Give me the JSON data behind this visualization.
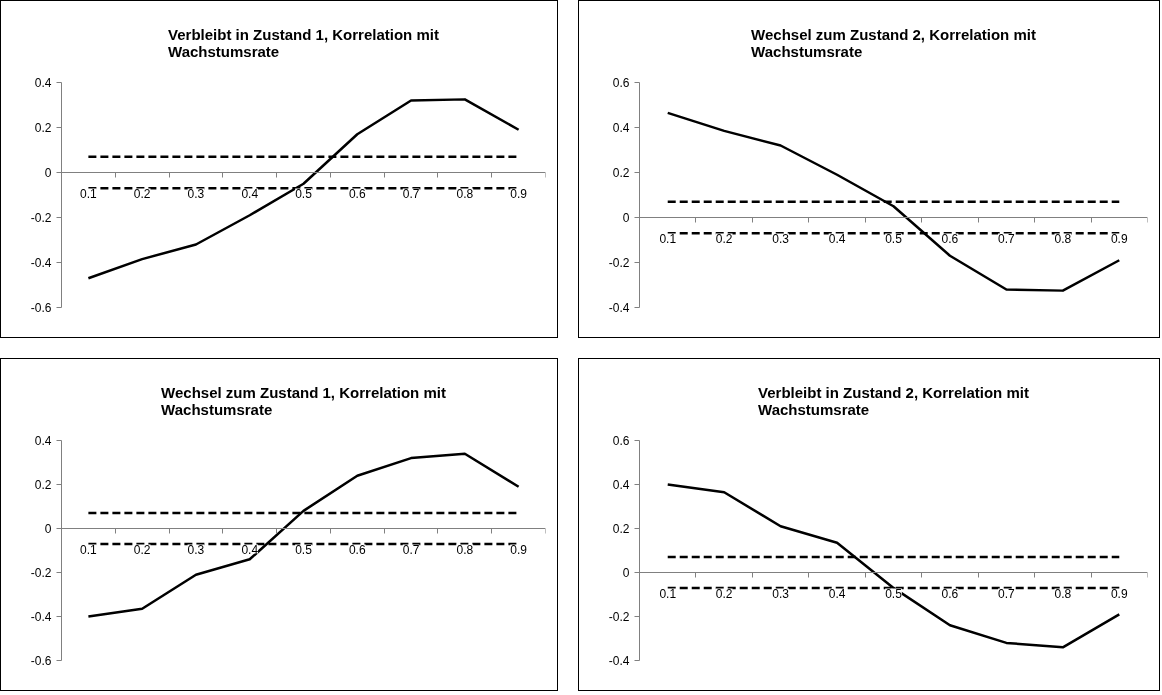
{
  "chart_data": [
    {
      "type": "line",
      "title": "Verbleibt in Zustand 1, Korrelation mit Wachstumsrate",
      "categories": [
        "0.1",
        "0.2",
        "0.3",
        "0.4",
        "0.5",
        "0.6",
        "0.7",
        "0.8",
        "0.9"
      ],
      "ylim": [
        -0.6,
        0.4
      ],
      "yticks": [
        -0.6,
        -0.4,
        -0.2,
        0,
        0.2,
        0.4
      ],
      "grid": false,
      "series": [
        {
          "color": "#000000",
          "line_style": "solid",
          "values": [
            -0.47,
            -0.385,
            -0.32,
            -0.19,
            -0.05,
            0.17,
            0.32,
            0.325,
            0.19
          ]
        },
        {
          "color": "#000000",
          "line_style": "dashed",
          "values": [
            0.07,
            0.07,
            0.07,
            0.07,
            0.07,
            0.07,
            0.07,
            0.07,
            0.07
          ]
        },
        {
          "color": "#000000",
          "line_style": "dashed",
          "values": [
            -0.07,
            -0.07,
            -0.07,
            -0.07,
            -0.07,
            -0.07,
            -0.07,
            -0.07,
            -0.07
          ]
        }
      ]
    },
    {
      "type": "line",
      "title": "Wechsel zum Zustand 2, Korrelation mit Wachstumsrate",
      "categories": [
        "0.1",
        "0.2",
        "0.3",
        "0.4",
        "0.5",
        "0.6",
        "0.7",
        "0.8",
        "0.9"
      ],
      "ylim": [
        -0.4,
        0.6
      ],
      "yticks": [
        -0.4,
        -0.2,
        0,
        0.2,
        0.4,
        0.6
      ],
      "grid": false,
      "series": [
        {
          "color": "#000000",
          "line_style": "solid",
          "values": [
            0.465,
            0.385,
            0.32,
            0.19,
            0.05,
            -0.17,
            -0.32,
            -0.325,
            -0.19
          ]
        },
        {
          "color": "#000000",
          "line_style": "dashed",
          "values": [
            0.07,
            0.07,
            0.07,
            0.07,
            0.07,
            0.07,
            0.07,
            0.07,
            0.07
          ]
        },
        {
          "color": "#000000",
          "line_style": "dashed",
          "values": [
            -0.07,
            -0.07,
            -0.07,
            -0.07,
            -0.07,
            -0.07,
            -0.07,
            -0.07,
            -0.07
          ]
        }
      ]
    },
    {
      "type": "line",
      "title": "Wechsel zum Zustand 1, Korrelation mit Wachstumsrate",
      "categories": [
        "0.1",
        "0.2",
        "0.3",
        "0.4",
        "0.5",
        "0.6",
        "0.7",
        "0.8",
        "0.9"
      ],
      "ylim": [
        -0.6,
        0.4
      ],
      "yticks": [
        -0.6,
        -0.4,
        -0.2,
        0,
        0.2,
        0.4
      ],
      "grid": false,
      "series": [
        {
          "color": "#000000",
          "line_style": "solid",
          "values": [
            -0.4,
            -0.365,
            -0.21,
            -0.14,
            0.08,
            0.24,
            0.32,
            0.34,
            0.19
          ]
        },
        {
          "color": "#000000",
          "line_style": "dashed",
          "values": [
            0.07,
            0.07,
            0.07,
            0.07,
            0.07,
            0.07,
            0.07,
            0.07,
            0.07
          ]
        },
        {
          "color": "#000000",
          "line_style": "dashed",
          "values": [
            -0.07,
            -0.07,
            -0.07,
            -0.07,
            -0.07,
            -0.07,
            -0.07,
            -0.07,
            -0.07
          ]
        }
      ]
    },
    {
      "type": "line",
      "title": "Verbleibt in Zustand 2, Korrelation mit Wachstumsrate",
      "categories": [
        "0.1",
        "0.2",
        "0.3",
        "0.4",
        "0.5",
        "0.6",
        "0.7",
        "0.8",
        "0.9"
      ],
      "ylim": [
        -0.4,
        0.6
      ],
      "yticks": [
        -0.4,
        -0.2,
        0,
        0.2,
        0.4,
        0.6
      ],
      "grid": false,
      "series": [
        {
          "color": "#000000",
          "line_style": "solid",
          "values": [
            0.4,
            0.365,
            0.21,
            0.135,
            -0.07,
            -0.24,
            -0.32,
            -0.34,
            -0.19
          ]
        },
        {
          "color": "#000000",
          "line_style": "dashed",
          "values": [
            0.07,
            0.07,
            0.07,
            0.07,
            0.07,
            0.07,
            0.07,
            0.07,
            0.07
          ]
        },
        {
          "color": "#000000",
          "line_style": "dashed",
          "values": [
            -0.07,
            -0.07,
            -0.07,
            -0.07,
            -0.07,
            -0.07,
            -0.07,
            -0.07,
            -0.07
          ]
        }
      ]
    }
  ]
}
